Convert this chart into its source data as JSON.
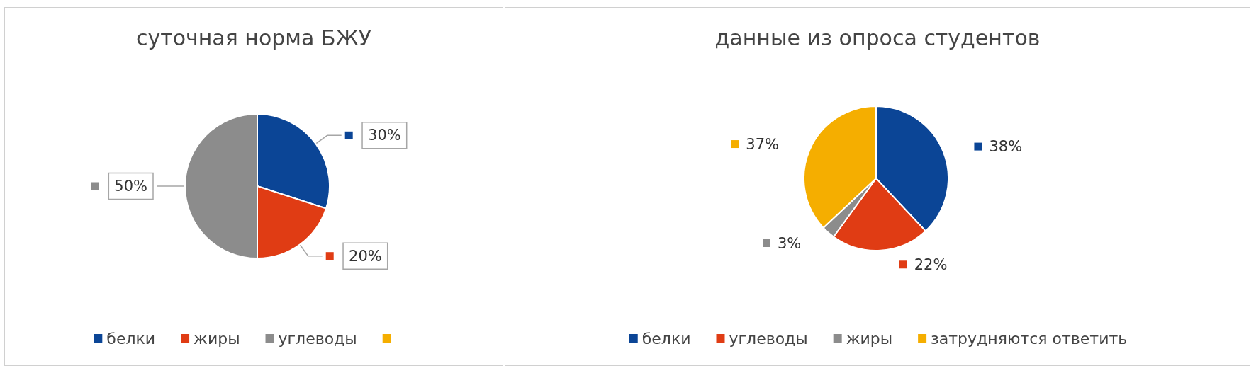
{
  "chart_data": [
    {
      "type": "pie",
      "title": "суточная норма БЖУ",
      "categories": [
        "белки",
        "жиры",
        "углеводы",
        null
      ],
      "values": [
        30,
        20,
        50,
        0
      ],
      "colors": [
        "#0b4596",
        "#e03c14",
        "#8c8c8c",
        "#f5ae00"
      ],
      "value_labels": [
        "30%",
        "20%",
        "50%",
        null
      ],
      "legend": "bottom"
    },
    {
      "type": "pie",
      "title": "данные из опроса студентов",
      "categories": [
        "белки",
        "углеводы",
        "жиры",
        "затрудняются ответить"
      ],
      "values": [
        38,
        22,
        3,
        37
      ],
      "colors": [
        "#0b4596",
        "#e03c14",
        "#8c8c8c",
        "#f5ae00"
      ],
      "value_labels": [
        "38%",
        "22%",
        "3%",
        "37%"
      ],
      "legend": "bottom"
    }
  ]
}
